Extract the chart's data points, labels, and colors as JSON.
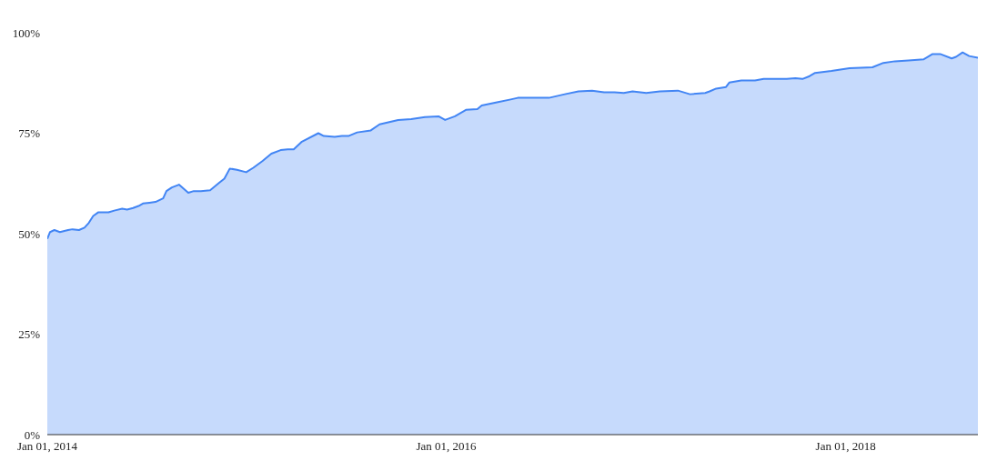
{
  "chart_data": {
    "type": "area",
    "x": [
      "2014-01-01",
      "2014-01-06",
      "2014-01-14",
      "2014-01-24",
      "2014-02-08",
      "2014-02-16",
      "2014-02-28",
      "2014-03-10",
      "2014-03-18",
      "2014-03-26",
      "2014-04-04",
      "2014-04-15",
      "2014-04-23",
      "2014-05-05",
      "2014-05-18",
      "2014-05-27",
      "2014-06-07",
      "2014-06-17",
      "2014-06-25",
      "2014-07-07",
      "2014-07-18",
      "2014-08-01",
      "2014-08-07",
      "2014-08-17",
      "2014-08-30",
      "2014-09-16",
      "2014-09-26",
      "2014-10-09",
      "2014-10-26",
      "2014-11-11",
      "2014-11-21",
      "2014-12-01",
      "2014-12-14",
      "2014-12-31",
      "2015-01-13",
      "2015-01-30",
      "2015-02-15",
      "2015-03-04",
      "2015-03-17",
      "2015-03-28",
      "2015-04-11",
      "2015-05-12",
      "2015-05-22",
      "2015-06-11",
      "2015-06-24",
      "2015-07-06",
      "2015-07-22",
      "2015-08-16",
      "2015-09-01",
      "2015-10-05",
      "2015-10-29",
      "2015-11-23",
      "2015-12-18",
      "2015-12-30",
      "2016-01-17",
      "2016-02-06",
      "2016-02-27",
      "2016-03-06",
      "2016-04-03",
      "2016-04-28",
      "2016-05-11",
      "2016-06-09",
      "2016-07-07",
      "2016-08-05",
      "2016-08-30",
      "2016-09-24",
      "2016-10-16",
      "2016-11-04",
      "2016-11-21",
      "2016-12-07",
      "2017-01-01",
      "2017-01-26",
      "2017-02-28",
      "2017-03-22",
      "2017-04-19",
      "2017-04-27",
      "2017-05-09",
      "2017-05-27",
      "2017-06-02",
      "2017-06-24",
      "2017-07-19",
      "2017-08-04",
      "2017-08-24",
      "2017-09-15",
      "2017-10-01",
      "2017-10-14",
      "2017-10-27",
      "2017-11-06",
      "2017-12-06",
      "2018-01-08",
      "2018-02-19",
      "2018-03-11",
      "2018-04-01",
      "2018-04-26",
      "2018-05-24",
      "2018-06-09",
      "2018-06-23",
      "2018-07-14",
      "2018-07-22",
      "2018-08-03",
      "2018-08-15",
      "2018-08-31"
    ],
    "series": [
      {
        "color": "#4285f4",
        "values": [
          48.7,
          50.4,
          50.9,
          50.4,
          50.9,
          51.1,
          50.9,
          51.5,
          52.7,
          54.4,
          55.3,
          55.3,
          55.3,
          55.8,
          56.2,
          56.0,
          56.4,
          56.9,
          57.5,
          57.7,
          57.9,
          58.8,
          60.6,
          61.5,
          62.2,
          60.2,
          60.6,
          60.6,
          60.8,
          62.6,
          63.7,
          66.2,
          65.9,
          65.3,
          66.4,
          68.1,
          69.9,
          70.8,
          71.0,
          71.0,
          72.8,
          75.0,
          74.3,
          74.1,
          74.3,
          74.3,
          75.2,
          75.7,
          77.2,
          78.3,
          78.5,
          79.0,
          79.2,
          78.3,
          79.2,
          80.8,
          81.0,
          81.9,
          82.7,
          83.4,
          83.8,
          83.8,
          83.8,
          84.7,
          85.4,
          85.6,
          85.2,
          85.2,
          85.0,
          85.4,
          85.0,
          85.4,
          85.6,
          84.7,
          85.0,
          85.4,
          86.1,
          86.5,
          87.6,
          88.1,
          88.1,
          88.5,
          88.5,
          88.5,
          88.7,
          88.5,
          89.2,
          90.0,
          90.5,
          91.2,
          91.4,
          92.5,
          92.9,
          93.1,
          93.4,
          94.7,
          94.7,
          93.6,
          94.0,
          95.1,
          94.2,
          93.8
        ]
      }
    ],
    "xlim": [
      "2014-01-01",
      "2018-08-31"
    ],
    "xticks": [
      {
        "value": "2014-01-01",
        "label": "Jan 01, 2014"
      },
      {
        "value": "2016-01-01",
        "label": "Jan 01, 2016"
      },
      {
        "value": "2018-01-01",
        "label": "Jan 01, 2018"
      }
    ],
    "ylim": [
      0,
      100
    ],
    "yticks": [
      {
        "value": 0,
        "label": "0%"
      },
      {
        "value": 25,
        "label": "25%"
      },
      {
        "value": 50,
        "label": "50%"
      },
      {
        "value": 75,
        "label": "75%"
      },
      {
        "value": 100,
        "label": "100%"
      }
    ],
    "grid": false,
    "legend": false
  }
}
